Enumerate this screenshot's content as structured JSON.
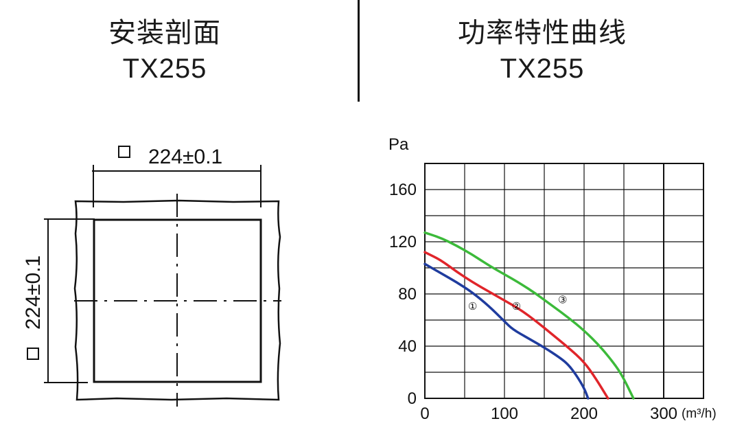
{
  "left_panel": {
    "title": "安装剖面",
    "model": "TX255",
    "dimension_top": "224±0.1",
    "dimension_side": "224±0.1",
    "square_symbol": "□"
  },
  "right_panel": {
    "title": "功率特性曲线",
    "model": "TX255"
  },
  "chart_data": {
    "type": "line",
    "ylabel": "Pa",
    "xlabel": "(m³/h)",
    "xlim": [
      0,
      350
    ],
    "ylim": [
      0,
      180
    ],
    "x_ticks": [
      "0",
      "100",
      "200",
      "300"
    ],
    "y_ticks": [
      "0",
      "40",
      "80",
      "120",
      "160"
    ],
    "grid": true,
    "series": [
      {
        "name": "①",
        "color": "#1f3c9e",
        "points": [
          [
            0,
            103
          ],
          [
            20,
            96
          ],
          [
            40,
            89
          ],
          [
            60,
            81
          ],
          [
            80,
            71
          ],
          [
            100,
            59
          ],
          [
            110,
            53
          ],
          [
            130,
            46
          ],
          [
            150,
            39
          ],
          [
            170,
            31
          ],
          [
            180,
            26
          ],
          [
            190,
            18
          ],
          [
            200,
            8
          ],
          [
            205,
            0
          ]
        ]
      },
      {
        "name": "②",
        "color": "#e0252a",
        "points": [
          [
            0,
            112
          ],
          [
            20,
            106
          ],
          [
            40,
            97
          ],
          [
            60,
            89
          ],
          [
            80,
            82
          ],
          [
            100,
            75
          ],
          [
            120,
            68
          ],
          [
            140,
            59
          ],
          [
            160,
            49
          ],
          [
            180,
            39
          ],
          [
            200,
            28
          ],
          [
            215,
            15
          ],
          [
            230,
            0
          ]
        ]
      },
      {
        "name": "③",
        "color": "#3cba3a",
        "points": [
          [
            0,
            127
          ],
          [
            20,
            123
          ],
          [
            40,
            117
          ],
          [
            60,
            110
          ],
          [
            80,
            102
          ],
          [
            100,
            95
          ],
          [
            120,
            88
          ],
          [
            140,
            80
          ],
          [
            160,
            71
          ],
          [
            180,
            62
          ],
          [
            200,
            52
          ],
          [
            220,
            40
          ],
          [
            240,
            25
          ],
          [
            250,
            15
          ],
          [
            258,
            5
          ],
          [
            262,
            0
          ]
        ]
      }
    ]
  }
}
